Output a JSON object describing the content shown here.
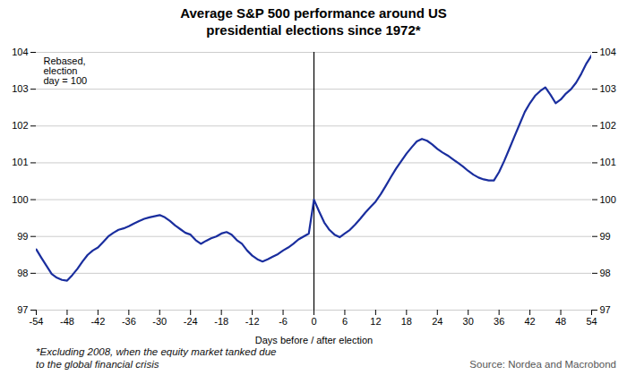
{
  "chart_data": {
    "type": "line",
    "title": "Average S&P 500 performance around US\npresidential elections since 1972*",
    "xlabel": "Days before / after election",
    "annotations": [
      "Rebased,\nelection\nday = 100",
      "*Excluding 2008, when the equity market tanked due\nto the global financial crisis",
      "Source: Nordea and Macrobond"
    ],
    "color": "#1a2e9e",
    "grid": "y",
    "xlim": [
      -54,
      54
    ],
    "ylim": [
      97,
      104
    ],
    "xticks": [
      -54,
      -48,
      -42,
      -36,
      -30,
      -24,
      -18,
      -12,
      -6,
      0,
      6,
      12,
      18,
      24,
      30,
      36,
      42,
      48,
      54
    ],
    "yticks": [
      97,
      98,
      99,
      100,
      101,
      102,
      103,
      104
    ],
    "y2lim": [
      97,
      104
    ],
    "y2ticks": [
      97,
      98,
      99,
      100,
      101,
      102,
      103,
      104
    ],
    "vlines": [
      0
    ],
    "x": [
      -54,
      -53,
      -52,
      -51,
      -50,
      -49,
      -48,
      -47,
      -46,
      -45,
      -44,
      -43,
      -42,
      -41,
      -40,
      -39,
      -38,
      -37,
      -36,
      -35,
      -34,
      -33,
      -32,
      -31,
      -30,
      -29,
      -28,
      -27,
      -26,
      -25,
      -24,
      -23,
      -22,
      -21,
      -20,
      -19,
      -18,
      -17,
      -16,
      -15,
      -14,
      -13,
      -12,
      -11,
      -10,
      -9,
      -8,
      -7,
      -6,
      -5,
      -4,
      -3,
      -2,
      -1,
      0,
      1,
      2,
      3,
      4,
      5,
      6,
      7,
      8,
      9,
      10,
      11,
      12,
      13,
      14,
      15,
      16,
      17,
      18,
      19,
      20,
      21,
      22,
      23,
      24,
      25,
      26,
      27,
      28,
      29,
      30,
      31,
      32,
      33,
      34,
      35,
      36,
      37,
      38,
      39,
      40,
      41,
      42,
      43,
      44,
      45,
      46,
      47,
      48,
      49,
      50,
      51,
      52,
      53,
      54
    ],
    "values": [
      98.65,
      98.42,
      98.2,
      97.98,
      97.88,
      97.82,
      97.8,
      97.95,
      98.12,
      98.32,
      98.5,
      98.62,
      98.7,
      98.85,
      99.0,
      99.1,
      99.18,
      99.22,
      99.28,
      99.35,
      99.42,
      99.48,
      99.52,
      99.55,
      99.58,
      99.52,
      99.42,
      99.3,
      99.2,
      99.1,
      99.05,
      98.9,
      98.8,
      98.88,
      98.95,
      99.0,
      99.08,
      99.12,
      99.05,
      98.9,
      98.8,
      98.62,
      98.48,
      98.38,
      98.32,
      98.38,
      98.45,
      98.52,
      98.62,
      98.7,
      98.8,
      98.92,
      99.0,
      99.08,
      100.0,
      99.68,
      99.38,
      99.18,
      99.05,
      98.98,
      99.08,
      99.18,
      99.32,
      99.48,
      99.65,
      99.8,
      99.95,
      100.15,
      100.38,
      100.62,
      100.85,
      101.05,
      101.25,
      101.42,
      101.58,
      101.65,
      101.6,
      101.5,
      101.38,
      101.28,
      101.2,
      101.1,
      101.0,
      100.9,
      100.78,
      100.68,
      100.6,
      100.55,
      100.52,
      100.52,
      100.75,
      101.05,
      101.38,
      101.72,
      102.05,
      102.38,
      102.62,
      102.82,
      102.95,
      103.05,
      102.85,
      102.62,
      102.72,
      102.88,
      103.0,
      103.18,
      103.42,
      103.7,
      103.92
    ]
  }
}
